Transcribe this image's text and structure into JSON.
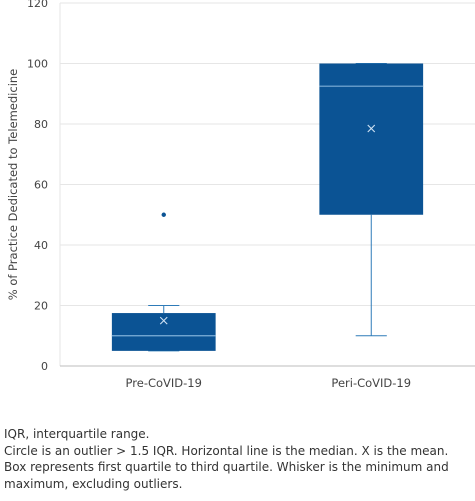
{
  "chart_data": {
    "type": "box",
    "ylabel": "% of Practice Dedicated to Telemedicine",
    "ylim": [
      0,
      120
    ],
    "yticks": [
      0,
      20,
      40,
      60,
      80,
      100,
      120
    ],
    "grid": true,
    "colors": {
      "box": "#0b5394",
      "whisker": "#2e7bb8",
      "median": "#7fb0d8",
      "grid": "#e6e6e6"
    },
    "categories": [
      "Pre-CoVID-19",
      "Peri-CoVID-19"
    ],
    "boxes": [
      {
        "category": "Pre-CoVID-19",
        "min": 5,
        "q1": 5,
        "median": 10,
        "q3": 17.5,
        "max": 20,
        "mean": 15,
        "outliers": [
          50
        ]
      },
      {
        "category": "Peri-CoVID-19",
        "min": 10,
        "q1": 50,
        "median": 92.5,
        "q3": 100,
        "max": 100,
        "mean": 78.5,
        "outliers": []
      }
    ]
  },
  "notes": [
    "IQR, interquartile range.",
    "Circle is an outlier > 1.5 IQR. Horizontal line is the median. X is the mean. Box represents first quartile to third quartile. Whisker is the minimum and maximum, excluding outliers."
  ]
}
